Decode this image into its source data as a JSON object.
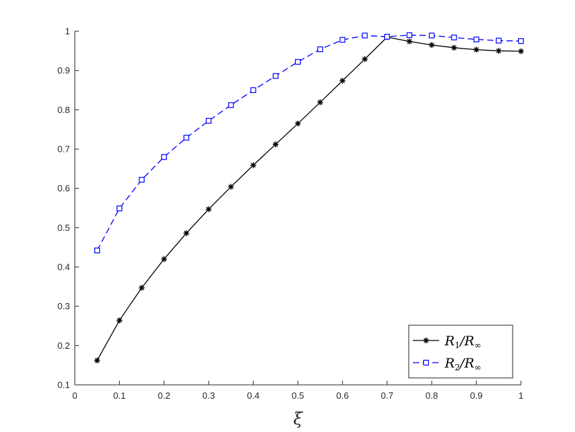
{
  "chart_data": {
    "type": "line",
    "xlabel": "ξ",
    "ylabel": "",
    "xlim": [
      0,
      1
    ],
    "ylim": [
      0.1,
      1
    ],
    "xticks": [
      "0",
      "0.1",
      "0.2",
      "0.3",
      "0.4",
      "0.5",
      "0.6",
      "0.7",
      "0.8",
      "0.9",
      "1"
    ],
    "yticks": [
      "0.1",
      "0.2",
      "0.3",
      "0.4",
      "0.5",
      "0.6",
      "0.7",
      "0.8",
      "0.9",
      "1"
    ],
    "grid": false,
    "legend_position": "bottom-right",
    "x": [
      0.05,
      0.1,
      0.15,
      0.2,
      0.25,
      0.3,
      0.35,
      0.4,
      0.45,
      0.5,
      0.55,
      0.6,
      0.65,
      0.7,
      0.75,
      0.8,
      0.85,
      0.9,
      0.95,
      1.0
    ],
    "series": [
      {
        "name": "R1/R∞",
        "name_parts": {
          "main": "R",
          "sub": "1",
          "sep": "/",
          "main2": "R",
          "sub2": "∞"
        },
        "color": "#000000",
        "line_style": "solid",
        "marker": "asterisk",
        "values": [
          0.162,
          0.264,
          0.347,
          0.42,
          0.486,
          0.547,
          0.604,
          0.659,
          0.712,
          0.765,
          0.819,
          0.874,
          0.929,
          0.985,
          0.974,
          0.965,
          0.958,
          0.953,
          0.95,
          0.949
        ]
      },
      {
        "name": "R2/R∞",
        "name_parts": {
          "main": "R",
          "sub": "2",
          "sep": "/",
          "main2": "R",
          "sub2": "∞"
        },
        "color": "#0000ff",
        "line_style": "dashed",
        "marker": "square",
        "values": [
          0.442,
          0.549,
          0.622,
          0.68,
          0.729,
          0.772,
          0.812,
          0.85,
          0.886,
          0.922,
          0.954,
          0.978,
          0.989,
          0.986,
          0.99,
          0.989,
          0.984,
          0.979,
          0.976,
          0.975
        ]
      }
    ]
  }
}
